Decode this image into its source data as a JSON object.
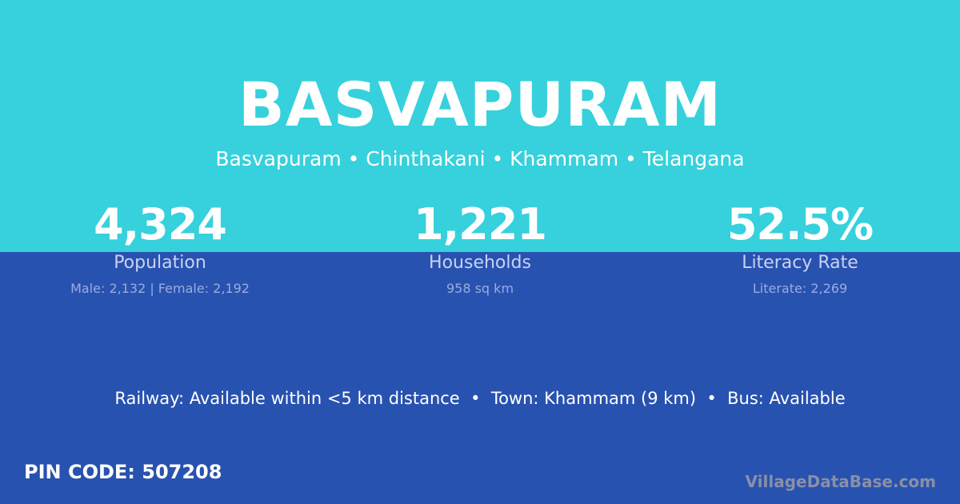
{
  "title": "BASVAPURAM",
  "subtitle": "Basvapuram • Chinthakani • Khammam • Telangana",
  "stats": [
    {
      "value": "4,324",
      "label": "Population",
      "detail": "Male: 2,132 | Female: 2,192"
    },
    {
      "value": "1,221",
      "label": "Households",
      "detail": "958 sq km"
    },
    {
      "value": "52.5%",
      "label": "Literacy Rate",
      "detail": "Literate: 2,269"
    }
  ],
  "info": "Railway: Available within <5 km distance  •  Town: Khammam (9 km)  •  Bus: Available",
  "pin": "PIN CODE: 507208",
  "brand": "VillageDataBase.com",
  "colors": {
    "top": "#36D1DC",
    "bottom": "#2852B0"
  }
}
